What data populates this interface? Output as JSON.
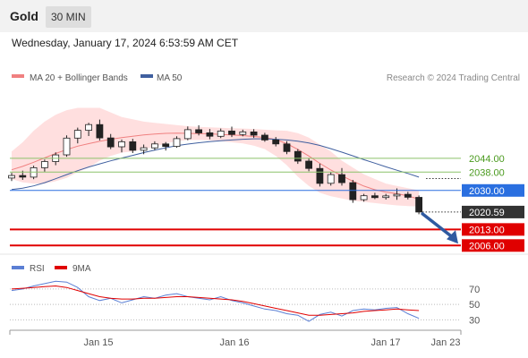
{
  "header": {
    "title": "Gold",
    "timeframe": "30 MIN",
    "datetime": "Wednesday, January 17, 2024 6:53:59 AM CET"
  },
  "legend": {
    "ma20_label": "MA 20 + Bollinger Bands",
    "ma50_label": "MA 50",
    "credit": "Research © 2024 Trading Central"
  },
  "colors": {
    "bullish": "#ffffff",
    "bearish": "#222222",
    "ma20": "#f08080",
    "ma50": "#3f5f9f",
    "bollinger": "#ffd9d9",
    "pivot_blue": "#2a6fe0",
    "support_red": "#e00000",
    "resistance_green": "#8cc26a",
    "rsi": "#5b7fd4",
    "rsi_ma": "#e00000",
    "arrow": "#2f5aa0"
  },
  "chart_data": [
    {
      "type": "candlestick",
      "title": "Gold",
      "x_labels": [
        "Jan 15",
        "Jan 16",
        "Jan 17",
        "Jan 23"
      ],
      "ylim": [
        2003,
        2074
      ],
      "levels": [
        {
          "value": 2044.0,
          "label": "2044.00",
          "kind": "resistance"
        },
        {
          "value": 2038.0,
          "label": "2038.00",
          "kind": "resistance"
        },
        {
          "value": 2030.0,
          "label": "2030.00",
          "kind": "pivot"
        },
        {
          "value": 2020.59,
          "label": "2020.59",
          "kind": "last"
        },
        {
          "value": 2013.0,
          "label": "2013.00",
          "kind": "support"
        },
        {
          "value": 2006.0,
          "label": "2006.00",
          "kind": "support"
        }
      ],
      "series": [
        {
          "name": "MA 20 + Bollinger Bands",
          "ma20": [
            2039.0,
            2040.5,
            2042.3,
            2044.2,
            2046.1,
            2047.8,
            2049.3,
            2050.4,
            2051.4,
            2052.3,
            2053.0,
            2053.6,
            2054.2,
            2054.6,
            2054.9,
            2055.0,
            2054.9,
            2054.8,
            2054.7,
            2054.4,
            2054.2,
            2053.9,
            2053.5,
            2053.1,
            2052.2,
            2050.4,
            2047.9,
            2045.0,
            2041.8,
            2038.9,
            2036.4,
            2034.0,
            2031.9,
            2030.3,
            2029.3,
            2028.6,
            2027.6,
            2026.2
          ],
          "upper": [
            2047.0,
            2051.0,
            2056.0,
            2060.0,
            2063.0,
            2065.0,
            2066.0,
            2066.0,
            2066.0,
            2064.0,
            2062.0,
            2061.0,
            2060.0,
            2059.5,
            2059.0,
            2058.5,
            2058.0,
            2057.7,
            2057.5,
            2057.3,
            2057.1,
            2057.0,
            2056.8,
            2056.5,
            2056.2,
            2056.0,
            2055.0,
            2053.0,
            2050.0,
            2047.0,
            2043.0,
            2040.0,
            2037.0,
            2035.0,
            2033.0,
            2032.0,
            2031.0,
            2030.0
          ],
          "lower": [
            2035.0,
            2033.5,
            2033.0,
            2033.0,
            2034.0,
            2035.5,
            2038.0,
            2040.0,
            2043.0,
            2045.0,
            2046.5,
            2047.0,
            2048.0,
            2049.0,
            2050.5,
            2051.5,
            2052.0,
            2052.0,
            2051.8,
            2051.5,
            2051.0,
            2050.5,
            2049.5,
            2048.0,
            2045.0,
            2041.0,
            2036.0,
            2032.0,
            2029.0,
            2027.5,
            2026.5,
            2025.5,
            2025.0,
            2024.5,
            2024.0,
            2023.5,
            2023.2,
            2023.0
          ]
        },
        {
          "name": "MA 50",
          "values": [
            2030.4,
            2031.0,
            2032.0,
            2033.4,
            2035.1,
            2036.9,
            2038.6,
            2040.2,
            2041.6,
            2042.9,
            2044.1,
            2045.3,
            2046.5,
            2047.6,
            2048.6,
            2049.5,
            2050.2,
            2050.8,
            2051.3,
            2051.7,
            2052.0,
            2052.3,
            2052.5,
            2052.5,
            2052.3,
            2052.0,
            2051.5,
            2050.7,
            2049.6,
            2048.2,
            2046.7,
            2045.1,
            2043.4,
            2041.9,
            2040.3,
            2038.8,
            2037.4,
            2035.8
          ]
        }
      ],
      "ohlc": [
        [
          2035.4,
          2037.7,
          2034.1,
          2036.5
        ],
        [
          2036.5,
          2038.6,
          2034.6,
          2035.8
        ],
        [
          2035.8,
          2040.8,
          2034.9,
          2039.9
        ],
        [
          2039.9,
          2043.5,
          2038.2,
          2042.6
        ],
        [
          2042.6,
          2046.6,
          2041.0,
          2045.5
        ],
        [
          2045.5,
          2054.0,
          2044.7,
          2052.8
        ],
        [
          2052.8,
          2057.4,
          2050.5,
          2056.2
        ],
        [
          2056.2,
          2059.5,
          2053.7,
          2058.7
        ],
        [
          2058.7,
          2060.9,
          2051.8,
          2052.9
        ],
        [
          2052.9,
          2054.6,
          2048.0,
          2049.0
        ],
        [
          2049.0,
          2052.2,
          2046.6,
          2051.2
        ],
        [
          2051.2,
          2052.5,
          2046.3,
          2047.5
        ],
        [
          2047.5,
          2050.0,
          2045.8,
          2048.6
        ],
        [
          2048.6,
          2051.4,
          2047.6,
          2050.3
        ],
        [
          2050.3,
          2051.1,
          2047.4,
          2049.2
        ],
        [
          2049.2,
          2053.6,
          2048.6,
          2052.6
        ],
        [
          2052.6,
          2057.9,
          2051.9,
          2056.5
        ],
        [
          2056.5,
          2058.4,
          2054.0,
          2055.1
        ],
        [
          2055.1,
          2056.8,
          2052.3,
          2053.6
        ],
        [
          2053.6,
          2057.0,
          2052.8,
          2055.9
        ],
        [
          2055.9,
          2057.8,
          2053.3,
          2054.4
        ],
        [
          2054.4,
          2056.5,
          2053.6,
          2055.5
        ],
        [
          2055.5,
          2056.7,
          2052.9,
          2054.1
        ],
        [
          2054.1,
          2055.1,
          2051.2,
          2052.0
        ],
        [
          2052.0,
          2053.3,
          2049.2,
          2050.3
        ],
        [
          2050.3,
          2051.5,
          2045.8,
          2047.0
        ],
        [
          2047.0,
          2048.0,
          2041.6,
          2042.8
        ],
        [
          2042.8,
          2044.2,
          2038.4,
          2039.6
        ],
        [
          2039.6,
          2041.7,
          2031.7,
          2033.1
        ],
        [
          2033.1,
          2038.0,
          2032.1,
          2036.9
        ],
        [
          2036.9,
          2039.8,
          2032.1,
          2033.4
        ],
        [
          2033.4,
          2034.6,
          2024.6,
          2026.0
        ],
        [
          2026.0,
          2028.5,
          2025.1,
          2027.7
        ],
        [
          2027.7,
          2029.0,
          2026.2,
          2026.9
        ],
        [
          2026.9,
          2028.5,
          2026.0,
          2027.6
        ],
        [
          2027.6,
          2030.9,
          2025.9,
          2028.3
        ],
        [
          2028.3,
          2029.4,
          2026.1,
          2027.0
        ],
        [
          2027.0,
          2027.8,
          2019.6,
          2020.6
        ]
      ]
    },
    {
      "type": "line",
      "title": "RSI",
      "yticks": [
        30,
        50,
        70
      ],
      "ylim": [
        20,
        85
      ],
      "series": [
        {
          "name": "RSI",
          "values": [
            68,
            70,
            74,
            77,
            80,
            79,
            72,
            60,
            55,
            58,
            52,
            56,
            60,
            58,
            62,
            64,
            60,
            58,
            56,
            60,
            55,
            52,
            48,
            44,
            42,
            38,
            36,
            28,
            37,
            40,
            35,
            42,
            44,
            43,
            45,
            46,
            38,
            32
          ]
        },
        {
          "name": "9MA",
          "values": [
            70,
            71,
            72,
            73,
            74,
            72,
            68,
            64,
            60,
            58,
            57,
            57,
            58,
            58,
            59,
            60,
            60,
            59,
            58,
            57,
            56,
            54,
            51,
            48,
            45,
            42,
            39,
            36,
            36,
            37,
            38,
            39,
            41,
            42,
            43,
            44,
            43,
            42
          ]
        }
      ]
    }
  ]
}
